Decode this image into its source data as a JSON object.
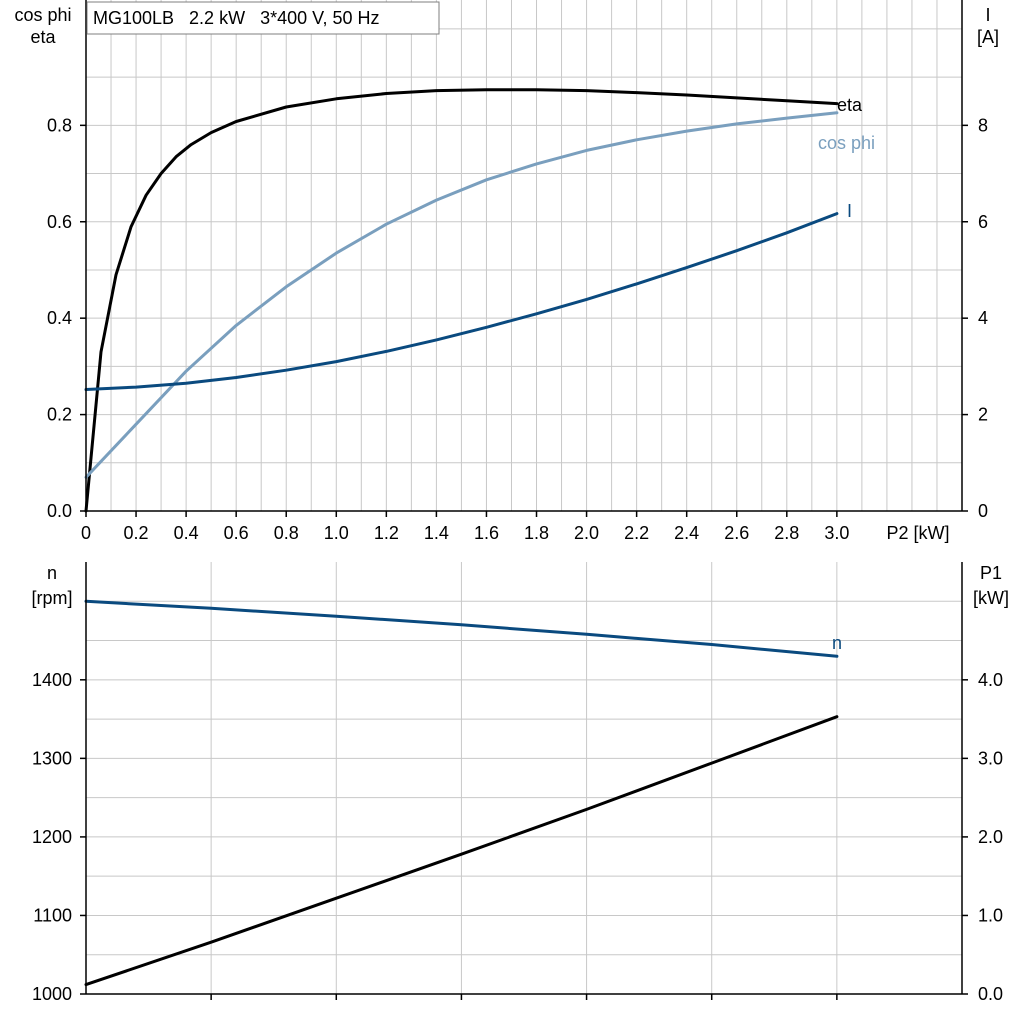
{
  "colors": {
    "eta": "#000000",
    "cos_phi": "#7a9fbe",
    "current": "#0a4a7f",
    "speed": "#0a4a7f",
    "p1": "#000000"
  },
  "chart_data": [
    {
      "type": "line",
      "title": "MG100LB   2.2 kW   3*400 V, 50 Hz",
      "xlabel": "P2 [kW]",
      "ylabel_left": [
        "cos phi",
        "eta"
      ],
      "ylabel_right": [
        "I",
        "[A]"
      ],
      "xlim": [
        0,
        3.5
      ],
      "ylim_left": [
        0,
        1.06
      ],
      "ylim_right": [
        0,
        10.6
      ],
      "x_ticks": [
        "0",
        "0.2",
        "0.4",
        "0.6",
        "0.8",
        "1.0",
        "1.2",
        "1.4",
        "1.6",
        "1.8",
        "2.0",
        "2.2",
        "2.4",
        "2.6",
        "2.8",
        "3.0"
      ],
      "x_tick_values": [
        0,
        0.2,
        0.4,
        0.6,
        0.8,
        1.0,
        1.2,
        1.4,
        1.6,
        1.8,
        2.0,
        2.2,
        2.4,
        2.6,
        2.8,
        3.0
      ],
      "y_left_ticks": [
        "0.0",
        "0.2",
        "0.4",
        "0.6",
        "0.8"
      ],
      "y_left_tick_values": [
        0,
        0.2,
        0.4,
        0.6,
        0.8
      ],
      "y_right_ticks": [
        "0",
        "2",
        "4",
        "6",
        "8"
      ],
      "y_right_tick_values": [
        0,
        2,
        4,
        6,
        8
      ],
      "grid": true,
      "series": [
        {
          "name": "eta",
          "axis": "left",
          "color_key": "eta",
          "x": [
            0,
            0.06,
            0.12,
            0.18,
            0.24,
            0.3,
            0.36,
            0.42,
            0.5,
            0.6,
            0.8,
            1.0,
            1.2,
            1.4,
            1.6,
            1.8,
            2.0,
            2.2,
            2.4,
            2.6,
            2.8,
            3.0
          ],
          "y": [
            0.0,
            0.33,
            0.49,
            0.59,
            0.655,
            0.7,
            0.735,
            0.76,
            0.785,
            0.808,
            0.838,
            0.855,
            0.866,
            0.872,
            0.874,
            0.874,
            0.872,
            0.868,
            0.863,
            0.857,
            0.851,
            0.845
          ]
        },
        {
          "name": "cos phi",
          "axis": "left",
          "color_key": "cos_phi",
          "x": [
            0,
            0.2,
            0.4,
            0.6,
            0.8,
            1.0,
            1.2,
            1.4,
            1.6,
            1.8,
            2.0,
            2.2,
            2.4,
            2.6,
            2.8,
            3.0
          ],
          "y": [
            0.07,
            0.18,
            0.29,
            0.385,
            0.465,
            0.535,
            0.595,
            0.645,
            0.687,
            0.72,
            0.748,
            0.77,
            0.788,
            0.803,
            0.815,
            0.826
          ]
        },
        {
          "name": "I",
          "axis": "right",
          "color_key": "current",
          "x": [
            0,
            0.2,
            0.4,
            0.6,
            0.8,
            1.0,
            1.2,
            1.4,
            1.6,
            1.8,
            2.0,
            2.2,
            2.4,
            2.6,
            2.8,
            3.0
          ],
          "y": [
            2.52,
            2.57,
            2.65,
            2.77,
            2.92,
            3.1,
            3.31,
            3.55,
            3.81,
            4.09,
            4.39,
            4.71,
            5.05,
            5.4,
            5.77,
            6.17
          ]
        }
      ]
    },
    {
      "type": "line",
      "ylabel_left": [
        "n",
        "[rpm]"
      ],
      "ylabel_right": [
        "P1",
        "[kW]"
      ],
      "xlim": [
        0,
        3.5
      ],
      "ylim_left": [
        1000,
        1550
      ],
      "ylim_right": [
        0,
        5.5
      ],
      "y_left_ticks": [
        "1000",
        "1100",
        "1200",
        "1300",
        "1400"
      ],
      "y_left_tick_values": [
        1000,
        1100,
        1200,
        1300,
        1400
      ],
      "y_right_ticks": [
        "0.0",
        "1.0",
        "2.0",
        "3.0",
        "4.0"
      ],
      "y_right_tick_values": [
        0,
        1,
        2,
        3,
        4
      ],
      "x_grid_values": [
        0.5,
        1.0,
        1.5,
        2.0,
        2.5,
        3.0
      ],
      "y_grid_values_left": [
        1050,
        1100,
        1150,
        1200,
        1250,
        1300,
        1350,
        1400,
        1450,
        1500
      ],
      "grid": true,
      "series": [
        {
          "name": "n",
          "axis": "left",
          "color_key": "speed",
          "x": [
            0,
            0.5,
            1.0,
            1.5,
            2.0,
            2.5,
            3.0
          ],
          "y": [
            1500,
            1491,
            1481,
            1470,
            1458,
            1445,
            1430
          ]
        },
        {
          "axis": "right",
          "color_key": "p1",
          "x": [
            0,
            0.5,
            1.0,
            1.5,
            2.0,
            2.5,
            3.0
          ],
          "y": [
            0.12,
            0.66,
            1.22,
            1.78,
            2.35,
            2.94,
            3.53
          ]
        }
      ]
    }
  ]
}
